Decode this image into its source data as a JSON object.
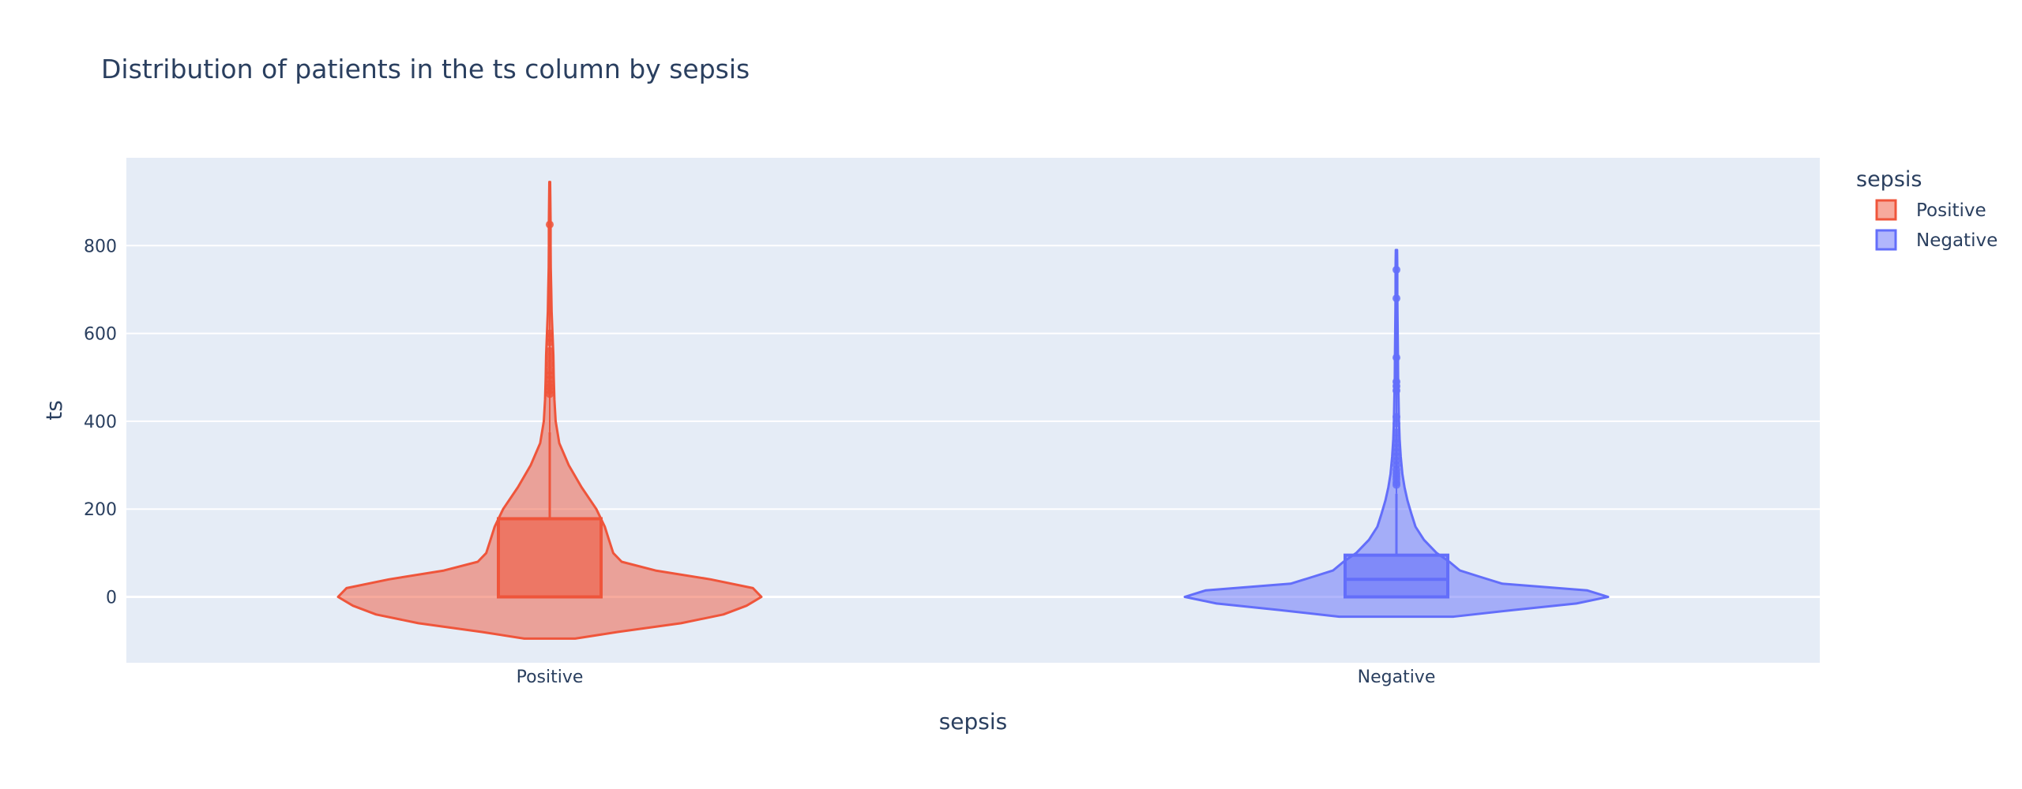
{
  "chart_data": {
    "type": "violin",
    "title": "Distribution of patients in the ts column by sepsis",
    "xlabel": "sepsis",
    "ylabel": "ts",
    "categories": [
      "Positive",
      "Negative"
    ],
    "ylim": [
      -150,
      1000
    ],
    "yticks": [
      0,
      200,
      400,
      600,
      800
    ],
    "grid": true,
    "legend": {
      "title": "sepsis",
      "placement": "top-right",
      "entries": [
        "Positive",
        "Negative"
      ]
    },
    "colors": {
      "plot_bg": "#e5ecf6",
      "grid": "#ffffff",
      "text": "#2a3f5f"
    },
    "series": [
      {
        "name": "Positive",
        "color": "#ef553b",
        "fill": "rgba(239,85,59,0.5)",
        "box_fill": "rgba(239,85,59,0.55)",
        "box": {
          "q1": 0,
          "median": 0,
          "q3": 178,
          "whisker_low": 0,
          "whisker_high": 375
        },
        "kde_range": [
          -95,
          945
        ],
        "density": [
          [
            -95,
            0.12
          ],
          [
            -80,
            0.32
          ],
          [
            -60,
            0.62
          ],
          [
            -40,
            0.82
          ],
          [
            -20,
            0.93
          ],
          [
            0,
            1.0
          ],
          [
            20,
            0.96
          ],
          [
            40,
            0.76
          ],
          [
            60,
            0.5
          ],
          [
            80,
            0.34
          ],
          [
            100,
            0.3
          ],
          [
            130,
            0.28
          ],
          [
            160,
            0.26
          ],
          [
            200,
            0.22
          ],
          [
            250,
            0.15
          ],
          [
            300,
            0.09
          ],
          [
            350,
            0.045
          ],
          [
            400,
            0.028
          ],
          [
            450,
            0.022
          ],
          [
            500,
            0.019
          ],
          [
            550,
            0.017
          ],
          [
            600,
            0.013
          ],
          [
            650,
            0.009
          ],
          [
            700,
            0.007
          ],
          [
            750,
            0.005
          ],
          [
            800,
            0.004
          ],
          [
            850,
            0.004
          ],
          [
            900,
            0.003
          ],
          [
            945,
            0.002
          ]
        ],
        "outliers": [
          848,
          600,
          590,
          580,
          560,
          545,
          530,
          515,
          505,
          495,
          485,
          478,
          470,
          462
        ]
      },
      {
        "name": "Negative",
        "color": "#636efa",
        "fill": "rgba(99,110,250,0.5)",
        "box_fill": "rgba(99,110,250,0.55)",
        "box": {
          "q1": 0,
          "median": 40,
          "q3": 95,
          "whisker_low": 0,
          "whisker_high": 235
        },
        "kde_range": [
          -45,
          790
        ],
        "density": [
          [
            -45,
            0.27
          ],
          [
            -30,
            0.55
          ],
          [
            -15,
            0.85
          ],
          [
            0,
            1.0
          ],
          [
            15,
            0.9
          ],
          [
            30,
            0.5
          ],
          [
            45,
            0.4
          ],
          [
            60,
            0.3
          ],
          [
            80,
            0.25
          ],
          [
            100,
            0.19
          ],
          [
            130,
            0.13
          ],
          [
            160,
            0.09
          ],
          [
            190,
            0.07
          ],
          [
            220,
            0.052
          ],
          [
            250,
            0.038
          ],
          [
            280,
            0.028
          ],
          [
            320,
            0.02
          ],
          [
            360,
            0.015
          ],
          [
            400,
            0.012
          ],
          [
            450,
            0.01
          ],
          [
            500,
            0.008
          ],
          [
            550,
            0.007
          ],
          [
            600,
            0.006
          ],
          [
            650,
            0.005
          ],
          [
            700,
            0.004
          ],
          [
            750,
            0.004
          ],
          [
            790,
            0.003
          ]
        ],
        "outliers": [
          745,
          680,
          545,
          490,
          480,
          470,
          410,
          395,
          375,
          360,
          350,
          340,
          330,
          320,
          310,
          300,
          290,
          282,
          275,
          268,
          260,
          255
        ]
      }
    ]
  }
}
